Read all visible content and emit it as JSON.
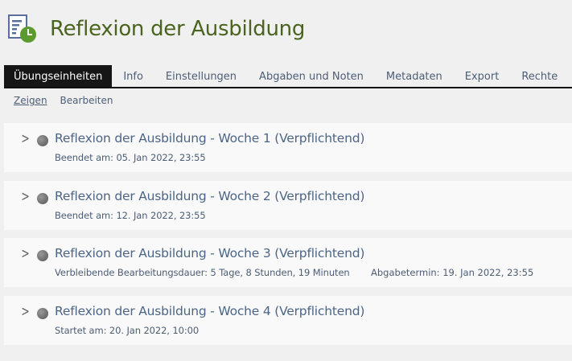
{
  "title": "Reflexion der Ausbildung",
  "tabs": [
    "Übungseinheiten",
    "Info",
    "Einstellungen",
    "Abgaben und Noten",
    "Metadaten",
    "Export",
    "Rechte"
  ],
  "subtabs": [
    "Zeigen",
    "Bearbeiten"
  ],
  "colors": {
    "title": "#4a6420",
    "link": "#4c6586",
    "active_tab": "#161616"
  },
  "items": [
    {
      "title": "Reflexion der Ausbildung - Woche 1 (Verpflichtend)",
      "meta": "Beendet am: 05. Jan 2022, 23:55",
      "meta2": ""
    },
    {
      "title": "Reflexion der Ausbildung - Woche 2 (Verpflichtend)",
      "meta": "Beendet am: 12. Jan 2022, 23:55",
      "meta2": ""
    },
    {
      "title": "Reflexion der Ausbildung - Woche 3 (Verpflichtend)",
      "meta": "Verbleibende Bearbeitungsdauer: 5 Tage, 8 Stunden, 19 Minuten",
      "meta2": "Abgabetermin: 19. Jan 2022, 23:55"
    },
    {
      "title": "Reflexion der Ausbildung - Woche 4 (Verpflichtend)",
      "meta": "Startet am: 20. Jan 2022, 10:00",
      "meta2": ""
    }
  ]
}
